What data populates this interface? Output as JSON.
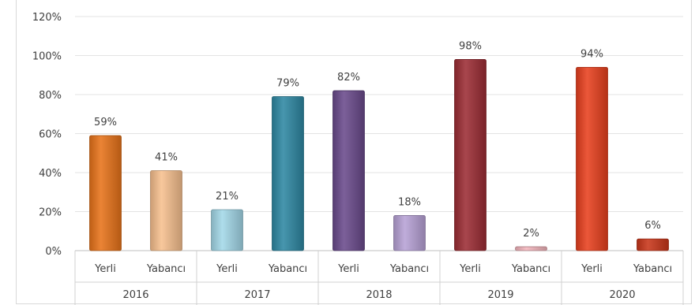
{
  "chart_data": {
    "type": "bar",
    "title": "",
    "xlabel": "",
    "ylabel": "",
    "ylim": [
      0,
      120
    ],
    "y_ticks": [
      "0%",
      "20%",
      "40%",
      "60%",
      "80%",
      "100%",
      "120%"
    ],
    "grid": true,
    "legend": "none",
    "groups": [
      "2016",
      "2017",
      "2018",
      "2019",
      "2020"
    ],
    "categories": [
      "Yerli",
      "Yabancı",
      "Yerli",
      "Yabancı",
      "Yerli",
      "Yabancı",
      "Yerli",
      "Yabancı",
      "Yerli",
      "Yabancı"
    ],
    "values": [
      59,
      41,
      21,
      79,
      82,
      18,
      98,
      2,
      94,
      6
    ],
    "data_labels": [
      "59%",
      "41%",
      "21%",
      "79%",
      "82%",
      "18%",
      "98%",
      "2%",
      "94%",
      "6%"
    ],
    "colors": [
      "#e8731a",
      "#f7c08f",
      "#a3d8e8",
      "#2e88a3",
      "#6a4a8c",
      "#b7a2d6",
      "#9c2d35",
      "#f4b6bd",
      "#e8401e",
      "#c9361a"
    ]
  }
}
